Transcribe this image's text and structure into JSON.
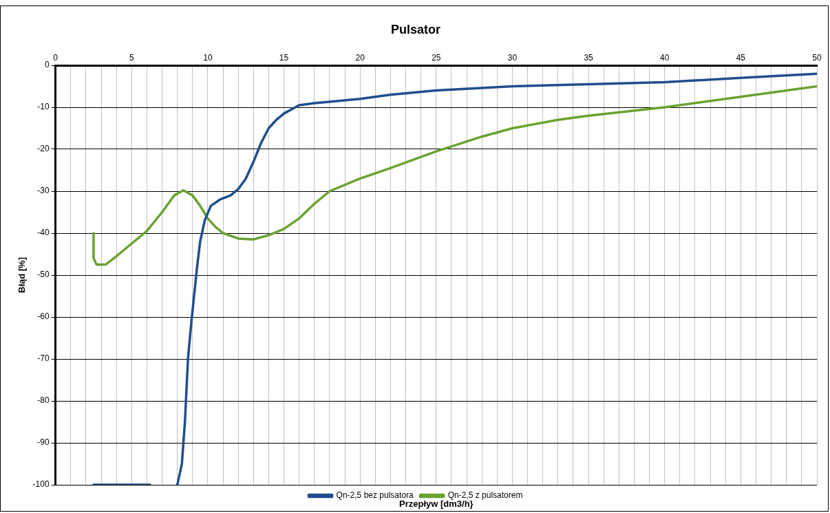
{
  "chart_data": {
    "type": "line",
    "title": "Pulsator",
    "xlabel": "Przepływ [dm3/h}",
    "ylabel": "Błąd [%]",
    "series": [
      {
        "name": "Qn-2,5 bez pulsatora",
        "color": "#1f4e8c",
        "x": [
          2.5,
          6.2,
          7,
          8.0,
          8.3,
          8.5,
          8.7,
          8.9,
          9.1,
          9.3,
          9.5,
          9.8,
          10.2,
          10.8,
          11.5,
          12,
          12.5,
          13,
          13.5,
          14,
          14.5,
          15,
          16,
          17,
          18,
          20,
          22,
          25,
          30,
          35,
          40,
          45,
          50
        ],
        "values": [
          -100,
          -100,
          null,
          -100,
          -95,
          -85,
          -70,
          -62,
          -55,
          -48,
          -42,
          -37,
          -33.5,
          -32,
          -31,
          -29.5,
          -27,
          -23,
          -18.5,
          -15,
          -13,
          -11.5,
          -9.5,
          -9,
          -8.7,
          -8,
          -7,
          -6,
          -5,
          -4.5,
          -4,
          -3,
          -2
        ]
      },
      {
        "name": "Qn-2,5 z pulsatorem",
        "color": "#6aa232",
        "x": [
          2.5,
          2.5,
          2.7,
          3.3,
          4,
          5,
          6,
          7,
          7.8,
          8.4,
          9,
          9.5,
          10,
          10.5,
          11,
          12,
          13,
          14,
          15,
          16,
          17,
          18,
          19,
          20,
          22,
          25,
          28,
          30,
          33,
          35,
          40,
          45,
          50
        ],
        "values": [
          -40,
          -46,
          -47.5,
          -47.5,
          -45.5,
          -42.5,
          -39.5,
          -35,
          -31,
          -29.8,
          -31,
          -33.5,
          -36.5,
          -38.5,
          -40,
          -41.3,
          -41.5,
          -40.5,
          -39,
          -36.5,
          -33,
          -30,
          -28.5,
          -27,
          -24.5,
          -20.5,
          -17,
          -15,
          -13,
          -12,
          -10,
          -7.5,
          -5
        ]
      }
    ],
    "xlim": [
      0,
      50
    ],
    "xticks": [
      0,
      {
        "value": 1,
        "label": null
      },
      {
        "value": 2,
        "label": null
      },
      {
        "value": 3,
        "label": null
      },
      {
        "value": 4,
        "label": null
      },
      5,
      {
        "value": 6,
        "label": null
      },
      {
        "value": 7,
        "label": null
      },
      {
        "value": 8,
        "label": null
      },
      {
        "value": 9,
        "label": null
      },
      10,
      {
        "value": 11,
        "label": null
      },
      {
        "value": 12,
        "label": null
      },
      {
        "value": 13,
        "label": null
      },
      {
        "value": 14,
        "label": null
      },
      15,
      {
        "value": 16,
        "label": null
      },
      {
        "value": 17,
        "label": null
      },
      {
        "value": 18,
        "label": null
      },
      {
        "value": 19,
        "label": null
      },
      20,
      {
        "value": 21,
        "label": null
      },
      {
        "value": 22,
        "label": null
      },
      {
        "value": 23,
        "label": null
      },
      {
        "value": 24,
        "label": null
      },
      25,
      {
        "value": 26,
        "label": null
      },
      {
        "value": 27,
        "label": null
      },
      {
        "value": 28,
        "label": null
      },
      {
        "value": 29,
        "label": null
      },
      30,
      {
        "value": 31,
        "label": null
      },
      {
        "value": 32,
        "label": null
      },
      {
        "value": 33,
        "label": null
      },
      {
        "value": 34,
        "label": null
      },
      35,
      {
        "value": 36,
        "label": null
      },
      {
        "value": 37,
        "label": null
      },
      {
        "value": 38,
        "label": null
      },
      {
        "value": 39,
        "label": null
      },
      40,
      {
        "value": 41,
        "label": null
      },
      {
        "value": 42,
        "label": null
      },
      {
        "value": 43,
        "label": null
      },
      {
        "value": 44,
        "label": null
      },
      45,
      {
        "value": 46,
        "label": null
      },
      {
        "value": 47,
        "label": null
      },
      {
        "value": 48,
        "label": null
      },
      {
        "value": 49,
        "label": null
      },
      50
    ],
    "ylim": [
      -100,
      0
    ],
    "yticks": [
      -100,
      -90,
      -80,
      -70,
      -60,
      -50,
      -40,
      -30,
      -20,
      -10,
      0
    ],
    "grid": true,
    "legend": "bottom",
    "marker": "none",
    "line_style": "solid"
  }
}
